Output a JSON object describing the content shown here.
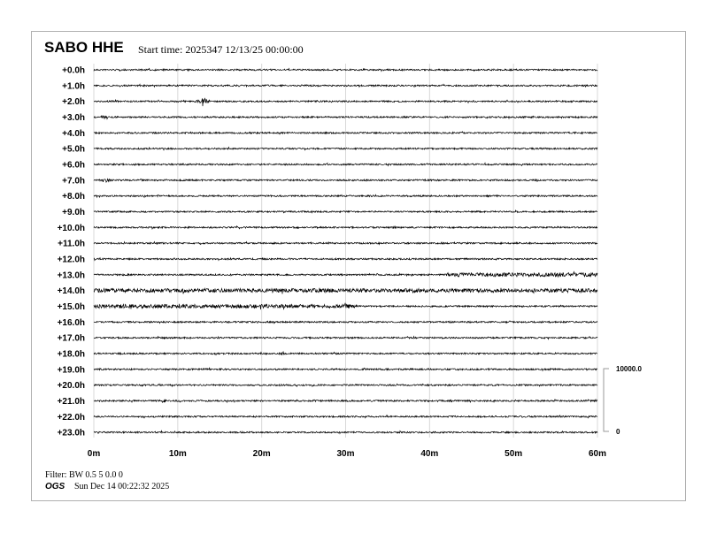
{
  "header": {
    "station": "SABO HHE",
    "start_time": "Start time: 2025347 12/13/25 00:00:00"
  },
  "footer": {
    "filter": "Filter: BW 0.5 5 0.0 0",
    "logo": "OGS",
    "generated": "Sun Dec 14 00:22:32 2025"
  },
  "chart_data": {
    "type": "line",
    "subtype": "helicorder",
    "row_labels": [
      "+0.0h",
      "+1.0h",
      "+2.0h",
      "+3.0h",
      "+4.0h",
      "+5.0h",
      "+6.0h",
      "+7.0h",
      "+8.0h",
      "+9.0h",
      "+10.0h",
      "+11.0h",
      "+12.0h",
      "+13.0h",
      "+14.0h",
      "+15.0h",
      "+16.0h",
      "+17.0h",
      "+18.0h",
      "+19.0h",
      "+20.0h",
      "+21.0h",
      "+22.0h",
      "+23.0h"
    ],
    "x_ticks": [
      "0m",
      "10m",
      "20m",
      "30m",
      "40m",
      "50m",
      "60m"
    ],
    "xlim": [
      0,
      60
    ],
    "grid": true,
    "scale_bar": {
      "top": "10000.0",
      "bottom": "0"
    },
    "events": [
      {
        "row": 2,
        "minute": 13,
        "amplitude": "large"
      },
      {
        "row": 3,
        "minute": 1.2,
        "amplitude": "small"
      },
      {
        "row": 7,
        "minute": 1.5,
        "amplitude": "small"
      },
      {
        "row": 18,
        "minute": 22.5,
        "amplitude": "small"
      },
      {
        "row": 21,
        "minute": 8.3,
        "amplitude": "small"
      }
    ],
    "high_noise_segments": [
      {
        "row": 13,
        "from": 42,
        "to": 60
      },
      {
        "row": 14,
        "from": 0,
        "to": 60
      },
      {
        "row": 15,
        "from": 0,
        "to": 31.5
      }
    ],
    "trace_color": "#000000"
  }
}
